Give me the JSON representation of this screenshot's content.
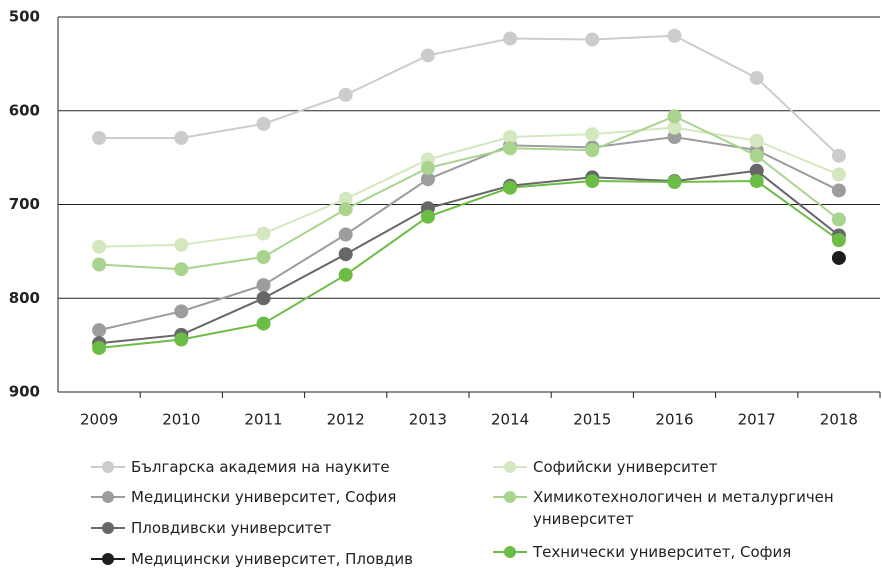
{
  "chart_data": {
    "type": "line",
    "categories": [
      "2009",
      "2010",
      "2011",
      "2012",
      "2013",
      "2014",
      "2015",
      "2016",
      "2017",
      "2018"
    ],
    "ylim": [
      500,
      900
    ],
    "yticks": [
      500,
      600,
      700,
      800,
      900
    ],
    "inverted": true,
    "grid": true,
    "series": [
      {
        "name": "Българска академия на науките",
        "color": "#cccccc",
        "values": [
          629,
          629,
          614,
          583,
          541,
          523,
          524,
          520,
          565,
          648
        ]
      },
      {
        "name": "Медицински университет, София",
        "color": "#9d9d9f",
        "values": [
          834,
          814,
          786,
          732,
          673,
          637,
          639,
          628,
          642,
          685
        ]
      },
      {
        "name": "Пловдивски университет",
        "color": "#67676a",
        "values": [
          848,
          839,
          800,
          753,
          704,
          680,
          671,
          675,
          664,
          733
        ]
      },
      {
        "name": "Медицински университет, Пловдив",
        "color": "#1e1e1e",
        "values": [
          null,
          null,
          null,
          null,
          null,
          null,
          null,
          null,
          null,
          757
        ]
      },
      {
        "name": "Софийски университет",
        "color": "#d3e8bf",
        "values": [
          745,
          743,
          731,
          694,
          652,
          628,
          625,
          618,
          632,
          668
        ]
      },
      {
        "name": "Химикотехнологичен и металургичен университет",
        "color": "#a9d48e",
        "values": [
          764,
          769,
          756,
          705,
          661,
          640,
          642,
          606,
          648,
          716
        ]
      },
      {
        "name": "Технически университет, София",
        "color": "#6cbd45",
        "values": [
          853,
          844,
          827,
          775,
          713,
          682,
          675,
          676,
          675,
          738
        ]
      }
    ]
  }
}
